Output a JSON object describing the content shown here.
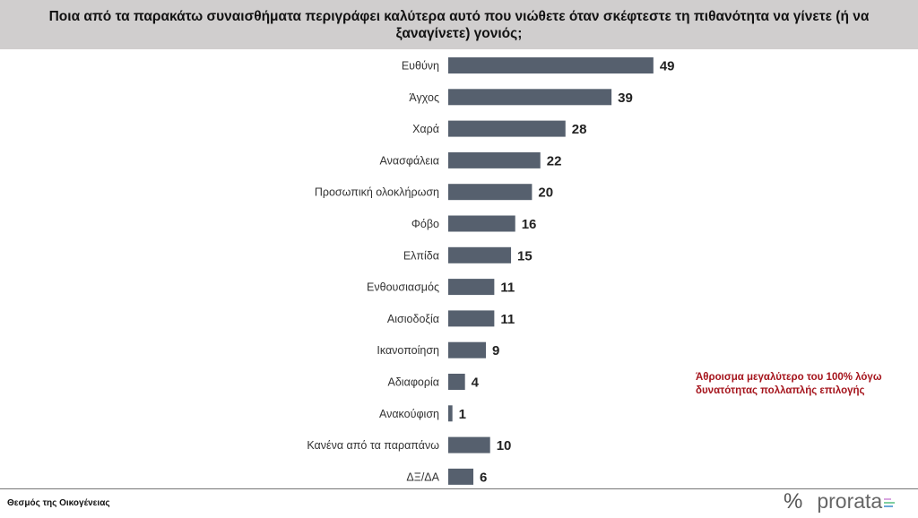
{
  "title": "Ποια από τα παρακάτω συναισθήματα περιγράφει καλύτερα αυτό που νιώθετε όταν σκέφτεστε τη πιθανότητα να γίνετε (ή να ξαναγίνετε) γονιός;",
  "note": "Άθροισμα μεγαλύτερο του 100% λόγω δυνατότητας πολλαπλής επιλογής",
  "source": "Θεσμός της Οικογένειας",
  "logo": {
    "symbol": "%",
    "text": "prorata"
  },
  "colors": {
    "bar": "#56606e",
    "header": "#d0cece",
    "note": "#a5141c"
  },
  "chart_data": {
    "type": "bar",
    "orientation": "horizontal",
    "categories": [
      "Ευθύνη",
      "Άγχος",
      "Χαρά",
      "Ανασφάλεια",
      "Προσωπική ολοκλήρωση",
      "Φόβο",
      "Ελπίδα",
      "Ενθουσιασμός",
      "Αισιοδοξία",
      "Ικανοποίηση",
      "Αδιαφορία",
      "Ανακούφιση",
      "Κανένα από τα παραπάνω",
      "ΔΞ/ΔΑ"
    ],
    "values": [
      49,
      39,
      28,
      22,
      20,
      16,
      15,
      11,
      11,
      9,
      4,
      1,
      10,
      6
    ],
    "xlim": [
      0,
      100
    ],
    "grid": false,
    "data_labels": true
  }
}
